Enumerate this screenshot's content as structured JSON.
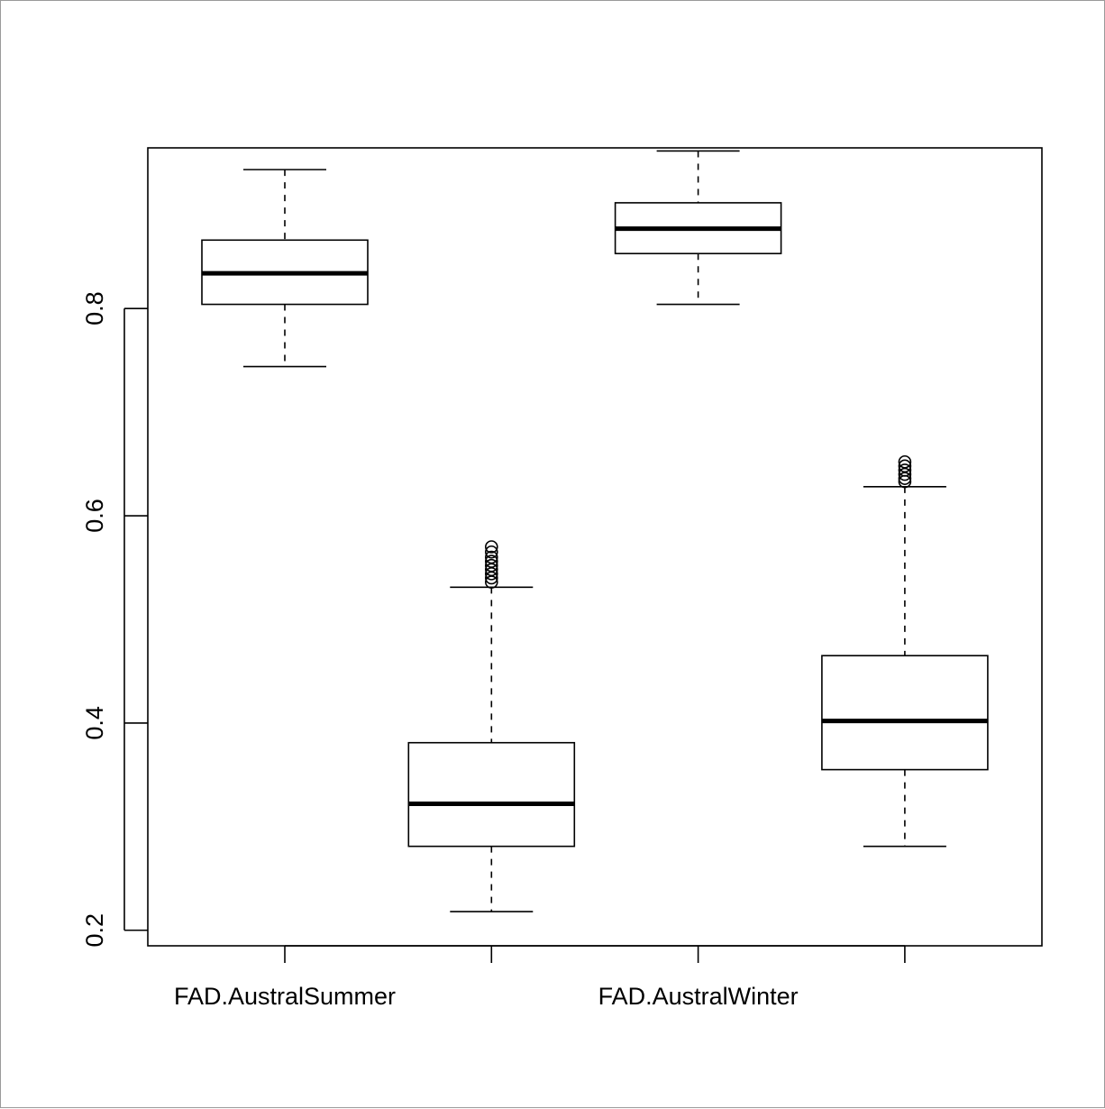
{
  "chart_data": {
    "type": "boxplot",
    "title": "",
    "xlabel": "",
    "ylabel": "",
    "x_tick_labels": [
      "FAD.AustralSummer",
      "",
      "FAD.AustralWinter",
      ""
    ],
    "y_ticks": [
      "0.2",
      "0.4",
      "0.6",
      "0.8"
    ],
    "ylim": [
      0.185,
      0.955
    ],
    "grid": false,
    "boxes": [
      {
        "whisker_low": 0.744,
        "q1": 0.804,
        "median": 0.834,
        "q3": 0.866,
        "whisker_high": 0.934,
        "outliers": []
      },
      {
        "whisker_low": 0.218,
        "q1": 0.281,
        "median": 0.322,
        "q3": 0.381,
        "whisker_high": 0.531,
        "outliers": [
          0.536,
          0.54,
          0.544,
          0.548,
          0.552,
          0.556,
          0.56,
          0.565,
          0.57
        ]
      },
      {
        "whisker_low": 0.804,
        "q1": 0.853,
        "median": 0.877,
        "q3": 0.902,
        "whisker_high": 0.952,
        "outliers": []
      },
      {
        "whisker_low": 0.281,
        "q1": 0.355,
        "median": 0.402,
        "q3": 0.465,
        "whisker_high": 0.628,
        "outliers": [
          0.633,
          0.636,
          0.64,
          0.644,
          0.648,
          0.652
        ]
      }
    ]
  }
}
